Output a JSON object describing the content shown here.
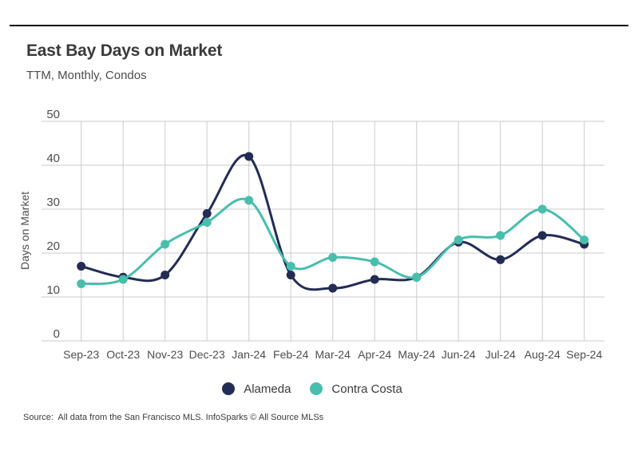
{
  "header": {
    "title": "East Bay Days on Market",
    "subtitle": "TTM, Monthly, Condos"
  },
  "source_note": "Source:  All data from the San Francisco MLS. InfoSparks © All Source MLSs",
  "colors": {
    "alameda": "#232c55",
    "contra_costa": "#48beac",
    "gridline": "#cbcbcb",
    "axis_text": "#4d4d4d",
    "title_text": "#3a3a3a",
    "top_rule": "#000000",
    "background": "#ffffff"
  },
  "chart_data": {
    "type": "line",
    "title": "East Bay Days on Market",
    "subtitle": "TTM, Monthly, Condos",
    "xlabel": "",
    "ylabel": "Days on Market",
    "ylim": [
      0,
      50
    ],
    "yticks": [
      0,
      10,
      20,
      30,
      40,
      50
    ],
    "grid": true,
    "legend_position": "bottom",
    "curve": "smooth",
    "categories": [
      "Sep-23",
      "Oct-23",
      "Nov-23",
      "Dec-23",
      "Jan-24",
      "Feb-24",
      "Mar-24",
      "Apr-24",
      "May-24",
      "Jun-24",
      "Jul-24",
      "Aug-24",
      "Sep-24"
    ],
    "series": [
      {
        "name": "Alameda",
        "color": "#232c55",
        "values": [
          17,
          14.5,
          15,
          29,
          42,
          15,
          12,
          14,
          14.5,
          22.5,
          18.5,
          24,
          22
        ]
      },
      {
        "name": "Contra Costa",
        "color": "#48beac",
        "values": [
          13,
          14,
          22,
          27,
          32,
          17,
          19,
          18,
          14.5,
          23,
          24,
          30,
          23
        ]
      }
    ]
  },
  "legend": {
    "items": [
      {
        "label": "Alameda"
      },
      {
        "label": "Contra Costa"
      }
    ]
  }
}
